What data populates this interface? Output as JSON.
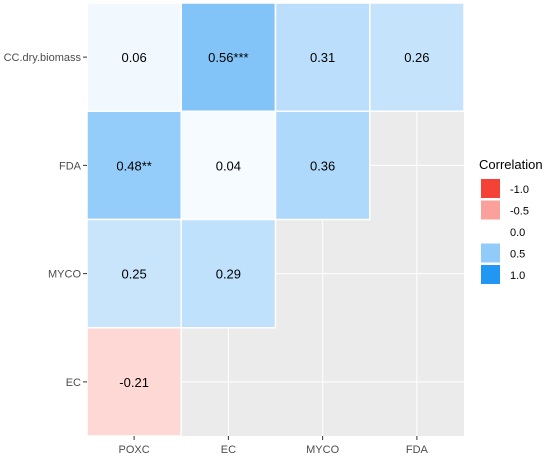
{
  "chart_data": {
    "type": "heatmap",
    "title": "",
    "xlabel": "",
    "ylabel": "",
    "x_categories": [
      "POXC",
      "EC",
      "MYCO",
      "FDA"
    ],
    "y_categories": [
      "CC.dry.biomass",
      "FDA",
      "MYCO",
      "EC"
    ],
    "cells": [
      {
        "row": "CC.dry.biomass",
        "col": "POXC",
        "value": 0.06,
        "label": "0.06"
      },
      {
        "row": "CC.dry.biomass",
        "col": "EC",
        "value": 0.56,
        "label": "0.56***"
      },
      {
        "row": "CC.dry.biomass",
        "col": "MYCO",
        "value": 0.31,
        "label": "0.31"
      },
      {
        "row": "CC.dry.biomass",
        "col": "FDA",
        "value": 0.26,
        "label": "0.26"
      },
      {
        "row": "FDA",
        "col": "POXC",
        "value": 0.48,
        "label": "0.48**"
      },
      {
        "row": "FDA",
        "col": "EC",
        "value": 0.04,
        "label": "0.04"
      },
      {
        "row": "FDA",
        "col": "MYCO",
        "value": 0.36,
        "label": "0.36"
      },
      {
        "row": "MYCO",
        "col": "POXC",
        "value": 0.25,
        "label": "0.25"
      },
      {
        "row": "MYCO",
        "col": "EC",
        "value": 0.29,
        "label": "0.29"
      },
      {
        "row": "EC",
        "col": "POXC",
        "value": -0.21,
        "label": "-0.21"
      }
    ],
    "legend": {
      "title": "Correlation",
      "placement": "right",
      "breaks": [
        {
          "value": -1.0,
          "label": "-1.0"
        },
        {
          "value": -0.5,
          "label": "-0.5"
        },
        {
          "value": 0.0,
          "label": "0.0"
        },
        {
          "value": 0.5,
          "label": "0.5"
        },
        {
          "value": 1.0,
          "label": "1.0"
        }
      ]
    },
    "colors": {
      "negative": "#f44336",
      "zero": "#ffffff",
      "positive": "#2196f3",
      "panel_background": "#ebebeb",
      "grid": "#ffffff"
    },
    "grid": true
  }
}
